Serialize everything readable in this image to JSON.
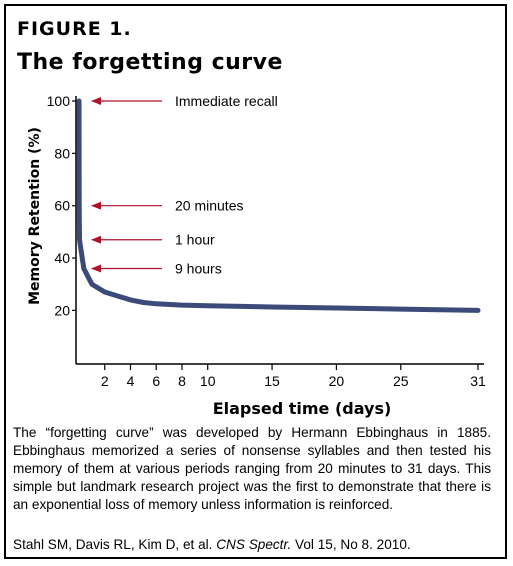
{
  "figure": {
    "label": "FIGURE 1.",
    "title": "The forgetting curve"
  },
  "chart_data": {
    "type": "line",
    "title": "The forgetting curve",
    "xlabel": "Elapsed time (days)",
    "ylabel": "Memory Retention (%)",
    "xlim": [
      0,
      31
    ],
    "ylim": [
      0,
      100
    ],
    "x_ticks": [
      2,
      4,
      6,
      8,
      10,
      15,
      20,
      25,
      31
    ],
    "y_ticks": [
      20,
      40,
      60,
      80,
      100
    ],
    "grid": false,
    "line_color": "#3b4a78",
    "arrow_color": "#b0102a",
    "series": [
      {
        "x": [
          0,
          0.014,
          0.042,
          0.375,
          1,
          2,
          3,
          4,
          5,
          6,
          8,
          10,
          15,
          20,
          25,
          31
        ],
        "y": [
          100,
          60,
          47,
          36,
          30,
          27,
          25.5,
          24,
          23,
          22.5,
          22,
          21.8,
          21.3,
          20.9,
          20.5,
          20
        ]
      }
    ],
    "annotations": [
      {
        "label": "Immediate recall",
        "y": 100
      },
      {
        "label": "20 minutes",
        "y": 60
      },
      {
        "label": "1 hour",
        "y": 47
      },
      {
        "label": "9 hours",
        "y": 36
      }
    ]
  },
  "caption": "The “forgetting curve” was developed by Hermann Ebbinghaus in 1885. Ebbinghaus memorized a series of nonsense syllables and then tested his memory of them at various periods ranging from 20 minutes to 31 days.  This simple but landmark research project was the first to demonstrate that there is an exponential loss of memory unless information is reinforced.",
  "citation": {
    "authors": "Stahl SM, Davis RL, Kim D, et al.",
    "journal": "CNS Spectr.",
    "details": "Vol 15, No 8. 2010."
  }
}
